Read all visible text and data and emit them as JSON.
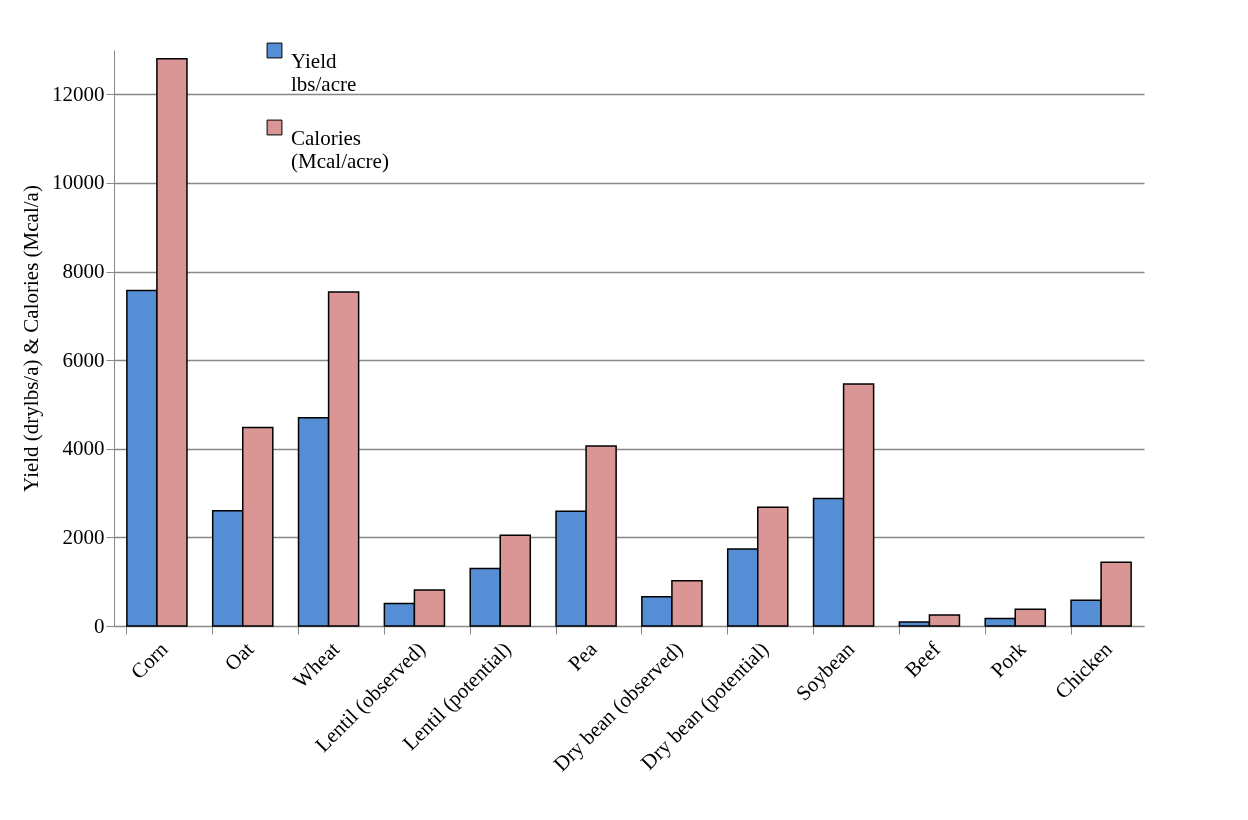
{
  "chart_data": {
    "type": "bar",
    "ylabel": "Yield (drylbs/a) & Calories (Mcal/a)",
    "categories": [
      "Corn",
      "Oat",
      "Wheat",
      "Lentil (observed)",
      "Lentil (potential)",
      "Pea",
      "Dry bean (observed)",
      "Dry bean (potential)",
      "Soybean",
      "Beef",
      "Pork",
      "Chicken"
    ],
    "series": [
      {
        "name": "Yield\nlbs/acre",
        "color": "#558ed5",
        "values": [
          7570,
          2600,
          4700,
          510,
          1300,
          2590,
          660,
          1740,
          2880,
          90,
          170,
          580
        ]
      },
      {
        "name": "Calories\n(Mcal/acre)",
        "color": "#d99694",
        "values": [
          12800,
          4480,
          7540,
          810,
          2050,
          4060,
          1020,
          2680,
          5460,
          250,
          380,
          1440
        ]
      }
    ],
    "ylim": [
      0,
      13000
    ],
    "yticks": [
      0,
      2000,
      4000,
      6000,
      8000,
      10000,
      12000
    ],
    "grid": "y",
    "legend": "top left"
  }
}
